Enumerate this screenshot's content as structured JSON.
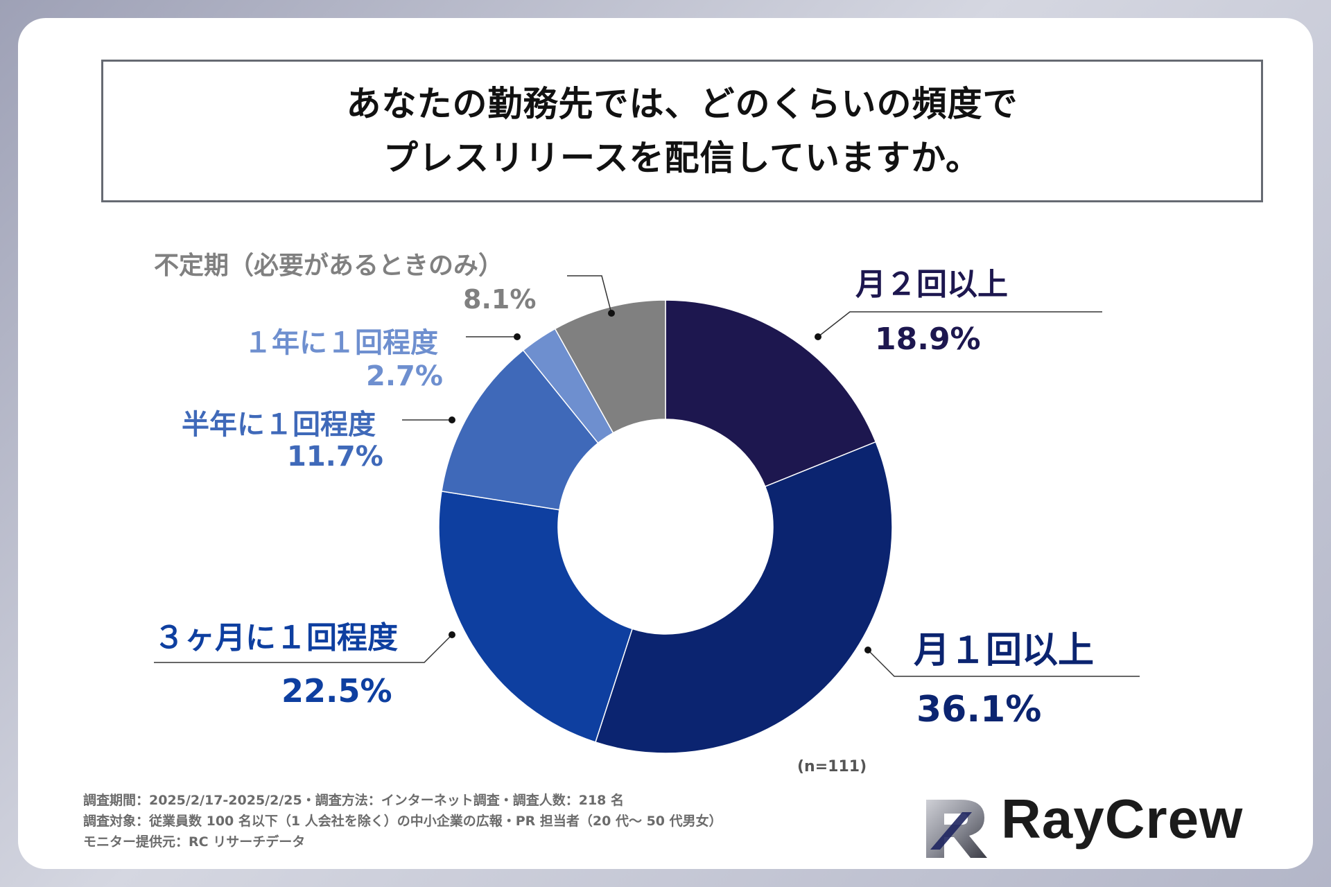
{
  "title": {
    "line1": "あなたの勤務先では、どのくらいの頻度で",
    "line2": "プレスリリースを配信していますか。"
  },
  "chart_data": {
    "type": "pie",
    "donut": true,
    "categories": [
      "月２回以上",
      "月１回以上",
      "３ヶ月に１回程度",
      "半年に１回程度",
      "１年に１回程度",
      "不定期（必要があるときのみ）"
    ],
    "values": [
      18.9,
      36.1,
      22.5,
      11.7,
      2.7,
      8.1
    ],
    "value_labels": [
      "18.9%",
      "36.1%",
      "22.5%",
      "11.7%",
      "2.7%",
      "8.1%"
    ],
    "colors": [
      "#1d174f",
      "#0b2470",
      "#0e3fa0",
      "#3f69b9",
      "#6e8fcf",
      "#808080"
    ],
    "label_colors": [
      "#1d174f",
      "#0b2470",
      "#0e3fa0",
      "#3f69b9",
      "#6e8fcf",
      "#808080"
    ]
  },
  "n_note": "(n=111)",
  "footnotes": [
    "調査期間：2025/2/17-2025/2/25・調査方法：インターネット調査・調査人数：218 名",
    "調査対象：従業員数 100 名以下（1 人会社を除く）の中小企業の広報・PR 担当者（20 代～ 50 代男女）",
    "モニター提供元：RC リサーチデータ"
  ],
  "logo": {
    "text": "RayCrew"
  }
}
